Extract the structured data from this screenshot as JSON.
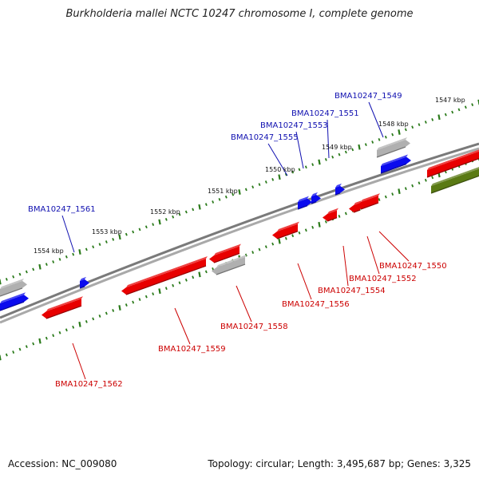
{
  "title": "Burkholderia mallei NCTC 10247 chromosome I, complete genome",
  "footer": {
    "accession": "Accession: NC_009080",
    "summary": "Topology: circular; Length: 3,495,687 bp; Genes: 3,325"
  },
  "colors": {
    "forward_label": "#1010b0",
    "reverse_label": "#cc0000",
    "gene_red": "#e80000",
    "gene_blue": "#0a0aee",
    "gene_gray": "#b0b0b0",
    "gene_olive": "#5a7a14",
    "tick_green": "#2a7a1a",
    "backbone": "#7a7a7a"
  },
  "ticks": [
    "1547 kbp",
    "1548 kbp",
    "1549 kbp",
    "1550 kbp",
    "1551 kbp",
    "1552 kbp",
    "1553 kbp",
    "1554 kbp"
  ],
  "genes_top": [
    "BMA10247_1549",
    "BMA10247_1551",
    "BMA10247_1553",
    "BMA10247_1555",
    "BMA10247_1561"
  ],
  "genes_bottom": [
    "BMA10247_1550",
    "BMA10247_1552",
    "BMA10247_1554",
    "BMA10247_1556",
    "BMA10247_1558",
    "BMA10247_1559",
    "BMA10247_1562"
  ]
}
